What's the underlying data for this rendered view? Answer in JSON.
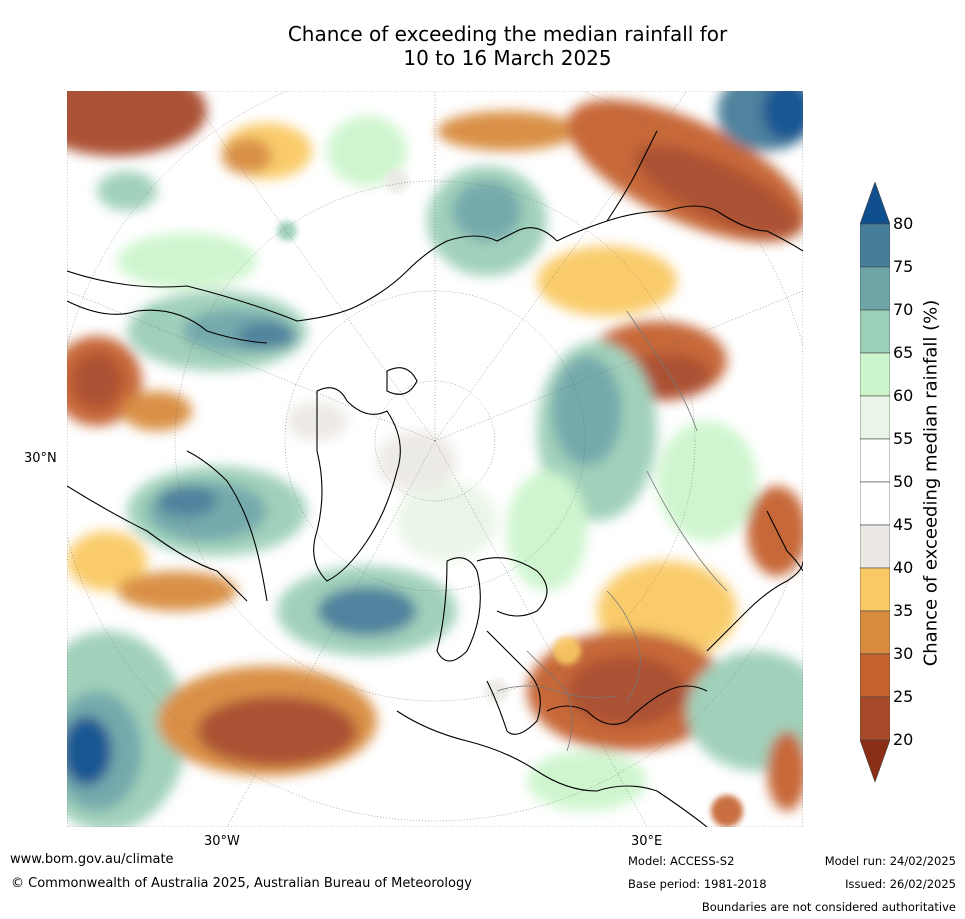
{
  "title": {
    "line1": "Chance of exceeding the median rainfall for",
    "line2": "10 to 16 March 2025"
  },
  "map": {
    "projection": "north polar stereographic",
    "lat_label": "30°N",
    "lon_labels": [
      "30°W",
      "30°E"
    ]
  },
  "colorbar": {
    "title": "Chance of exceeding median rainfall (%)",
    "ticks": [
      "20",
      "25",
      "30",
      "35",
      "40",
      "45",
      "50",
      "55",
      "60",
      "65",
      "70",
      "75",
      "80"
    ],
    "colors": [
      "#8b2e16",
      "#a84a2a",
      "#c4612f",
      "#d88b3e",
      "#f9c964",
      "#ece9e4",
      "#ffffff",
      "#ffffff",
      "#e9f5e6",
      "#ccf5cc",
      "#9ccfb8",
      "#6ea6a8",
      "#467d99",
      "#0f4f8e"
    ]
  },
  "footer": {
    "website": "www.bom.gov.au/climate",
    "copyright": "© Commonwealth of Australia 2025, Australian Bureau of Meteorology",
    "model": "Model: ACCESS-S2",
    "base_period": "Base period: 1981-2018",
    "model_run": "Model run: 24/02/2025",
    "issued": "Issued: 26/02/2025",
    "disclaimer": "Boundaries are not considered authoritative"
  }
}
